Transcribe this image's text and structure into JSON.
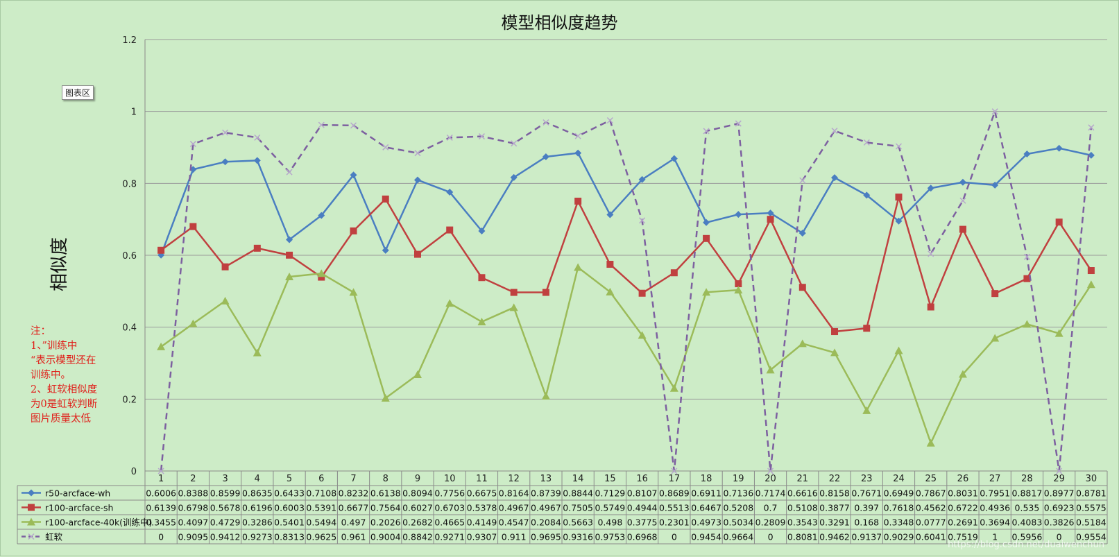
{
  "chart_area_tag": "图表区",
  "note": {
    "lines": [
      "注：",
      "1、”训练中",
      "“表示模型还在",
      "训练中。",
      "2、虹软相似度",
      "为0是虹软判断",
      "图片质量太低"
    ]
  },
  "watermark": "https://blog.csdn.net/duaiwenchun",
  "colors": {
    "background": "#cdecc7",
    "series": [
      "#4a7ec1",
      "#c0403f",
      "#9bbb59",
      "#7d60a0"
    ]
  },
  "chart_data": {
    "type": "line",
    "title": "模型相似度趋势",
    "ylabel": "相似度",
    "xlabel": "",
    "ylim": [
      0,
      1.2
    ],
    "yticks": [
      "0",
      "0.2",
      "0.4",
      "0.6",
      "0.8",
      "1",
      "1.2"
    ],
    "grid": true,
    "legend_placement": "data-table-left",
    "categories": [
      "1",
      "2",
      "3",
      "4",
      "5",
      "6",
      "7",
      "8",
      "9",
      "10",
      "11",
      "12",
      "13",
      "14",
      "15",
      "16",
      "17",
      "18",
      "19",
      "20",
      "21",
      "22",
      "23",
      "24",
      "25",
      "26",
      "27",
      "28",
      "29",
      "30"
    ],
    "series": [
      {
        "name": "r50-arcface-wh",
        "marker": "diamond",
        "dash": false,
        "values": [
          0.6006,
          0.8388,
          0.8599,
          0.8635,
          0.6433,
          0.7108,
          0.8232,
          0.6138,
          0.8094,
          0.7756,
          0.6675,
          0.8164,
          0.8739,
          0.8844,
          0.7129,
          0.8107,
          0.8689,
          0.6911,
          0.7136,
          0.7174,
          0.6616,
          0.8158,
          0.7671,
          0.6949,
          0.7867,
          0.8031,
          0.7951,
          0.8817,
          0.8977,
          0.8781
        ],
        "labels": [
          "0.6006",
          "0.8388",
          "0.8599",
          "0.8635",
          "0.6433",
          "0.7108",
          "0.8232",
          "0.6138",
          "0.8094",
          "0.7756",
          "0.6675",
          "0.8164",
          "0.8739",
          "0.8844",
          "0.7129",
          "0.8107",
          "0.8689",
          "0.6911",
          "0.7136",
          "0.7174",
          "0.6616",
          "0.8158",
          "0.7671",
          "0.6949",
          "0.7867",
          "0.8031",
          "0.7951",
          "0.8817",
          "0.8977",
          "0.8781"
        ]
      },
      {
        "name": "r100-arcface-sh",
        "marker": "square",
        "dash": false,
        "values": [
          0.6139,
          0.6798,
          0.5678,
          0.6196,
          0.6003,
          0.5391,
          0.6677,
          0.7564,
          0.6027,
          0.6703,
          0.5378,
          0.4967,
          0.4967,
          0.7505,
          0.5749,
          0.4944,
          0.5513,
          0.6467,
          0.5208,
          0.7,
          0.5108,
          0.3877,
          0.397,
          0.7618,
          0.4562,
          0.6722,
          0.4936,
          0.535,
          0.6923,
          0.5575
        ],
        "labels": [
          "0.6139",
          "0.6798",
          "0.5678",
          "0.6196",
          "0.6003",
          "0.5391",
          "0.6677",
          "0.7564",
          "0.6027",
          "0.6703",
          "0.5378",
          "0.4967",
          "0.4967",
          "0.7505",
          "0.5749",
          "0.4944",
          "0.5513",
          "0.6467",
          "0.5208",
          "0.7",
          "0.5108",
          "0.3877",
          "0.397",
          "0.7618",
          "0.4562",
          "0.6722",
          "0.4936",
          "0.535",
          "0.6923",
          "0.5575"
        ]
      },
      {
        "name": "r100-arcface-40k(训练中)",
        "marker": "triangle",
        "dash": false,
        "values": [
          0.3455,
          0.4097,
          0.4729,
          0.3286,
          0.5401,
          0.5494,
          0.497,
          0.2026,
          0.2682,
          0.4665,
          0.4149,
          0.4547,
          0.2084,
          0.5663,
          0.498,
          0.3775,
          0.2301,
          0.4973,
          0.5034,
          0.2809,
          0.3543,
          0.3291,
          0.168,
          0.3348,
          0.0777,
          0.2691,
          0.3694,
          0.4083,
          0.3826,
          0.5184
        ],
        "labels": [
          "0.3455",
          "0.4097",
          "0.4729",
          "0.3286",
          "0.5401",
          "0.5494",
          "0.497",
          "0.2026",
          "0.2682",
          "0.4665",
          "0.4149",
          "0.4547",
          "0.2084",
          "0.5663",
          "0.498",
          "0.3775",
          "0.2301",
          "0.4973",
          "0.5034",
          "0.2809",
          "0.3543",
          "0.3291",
          "0.168",
          "0.3348",
          "0.0777",
          "0.2691",
          "0.3694",
          "0.4083",
          "0.3826",
          "0.5184"
        ]
      },
      {
        "name": "虹软",
        "marker": "x",
        "dash": true,
        "values": [
          0,
          0.9095,
          0.9412,
          0.9273,
          0.8313,
          0.9625,
          0.961,
          0.9004,
          0.8842,
          0.9271,
          0.9307,
          0.911,
          0.9695,
          0.9316,
          0.9753,
          0.6968,
          0,
          0.9454,
          0.9664,
          0,
          0.8081,
          0.9462,
          0.9137,
          0.9029,
          0.6041,
          0.7519,
          1,
          0.5956,
          0,
          0.9554
        ],
        "labels": [
          "0",
          "0.9095",
          "0.9412",
          "0.9273",
          "0.8313",
          "0.9625",
          "0.961",
          "0.9004",
          "0.8842",
          "0.9271",
          "0.9307",
          "0.911",
          "0.9695",
          "0.9316",
          "0.9753",
          "0.6968",
          "0",
          "0.9454",
          "0.9664",
          "0",
          "0.8081",
          "0.9462",
          "0.9137",
          "0.9029",
          "0.6041",
          "0.7519",
          "1",
          "0.5956",
          "0",
          "0.9554"
        ]
      }
    ]
  }
}
